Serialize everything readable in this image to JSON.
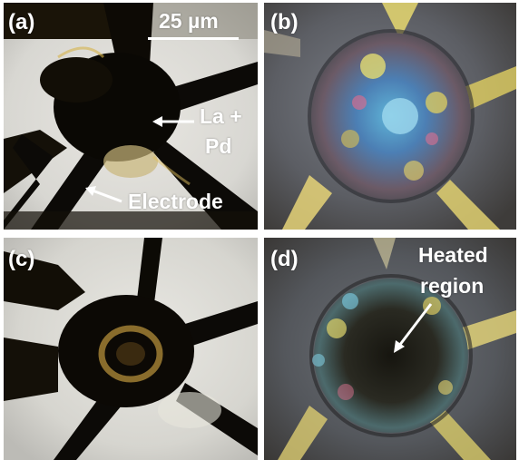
{
  "figure": {
    "panels": [
      {
        "label": "(a)"
      },
      {
        "label": "(b)"
      },
      {
        "label": "(c)"
      },
      {
        "label": "(d)"
      }
    ],
    "scale_bar": {
      "text": "25 µm"
    },
    "annotations": {
      "sample_line1": "La +",
      "sample_line2": "Pd",
      "electrode": "Electrode",
      "heated_line1": "Heated",
      "heated_line2": "region"
    }
  }
}
